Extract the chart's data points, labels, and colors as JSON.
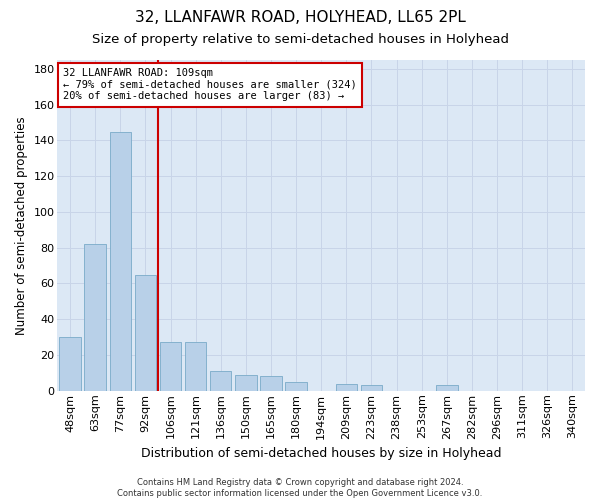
{
  "title": "32, LLANFAWR ROAD, HOLYHEAD, LL65 2PL",
  "subtitle": "Size of property relative to semi-detached houses in Holyhead",
  "xlabel": "Distribution of semi-detached houses by size in Holyhead",
  "ylabel": "Number of semi-detached properties",
  "categories": [
    "48sqm",
    "63sqm",
    "77sqm",
    "92sqm",
    "106sqm",
    "121sqm",
    "136sqm",
    "150sqm",
    "165sqm",
    "180sqm",
    "194sqm",
    "209sqm",
    "223sqm",
    "238sqm",
    "253sqm",
    "267sqm",
    "282sqm",
    "296sqm",
    "311sqm",
    "326sqm",
    "340sqm"
  ],
  "values": [
    30,
    82,
    145,
    65,
    27,
    27,
    11,
    9,
    8,
    5,
    0,
    4,
    3,
    0,
    0,
    3,
    0,
    0,
    0,
    0,
    0
  ],
  "bar_color": "#b8d0e8",
  "bar_edge_color": "#7aaac8",
  "annotation_line1": "32 LLANFAWR ROAD: 109sqm",
  "annotation_line2": "← 79% of semi-detached houses are smaller (324)",
  "annotation_line3": "20% of semi-detached houses are larger (83) →",
  "annotation_box_color": "#ffffff",
  "annotation_box_edge_color": "#cc0000",
  "vline_color": "#cc0000",
  "vline_x_index": 3.5,
  "ylim": [
    0,
    185
  ],
  "yticks": [
    0,
    20,
    40,
    60,
    80,
    100,
    120,
    140,
    160,
    180
  ],
  "grid_color": "#c8d4e8",
  "bg_color": "#dce8f5",
  "footer": "Contains HM Land Registry data © Crown copyright and database right 2024.\nContains public sector information licensed under the Open Government Licence v3.0.",
  "title_fontsize": 11,
  "subtitle_fontsize": 9.5,
  "xlabel_fontsize": 9,
  "ylabel_fontsize": 8.5,
  "tick_fontsize": 8,
  "footer_fontsize": 6,
  "annotation_fontsize": 7.5
}
